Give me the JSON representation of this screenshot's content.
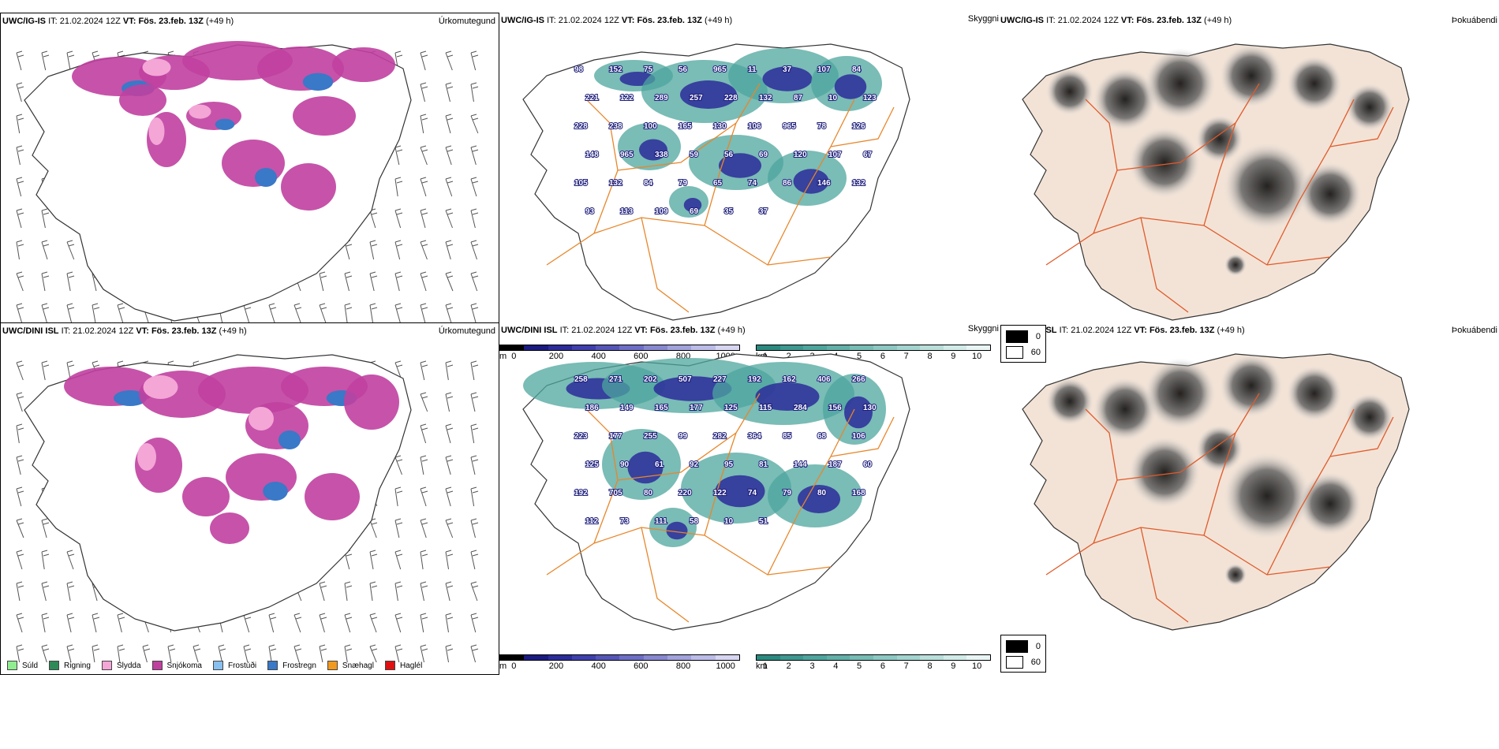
{
  "rows": [
    {
      "model": "UWC/IG-IS",
      "it_label": "IT:",
      "it_value": "21.02.2024 12Z",
      "vt_label": "VT:",
      "vt_value": "Fös. 23.feb. 13Z",
      "lead": "(+49 h)",
      "panel1_title": "Úrkomutegund",
      "panel2_title": "Skyggni",
      "panel3_title": "Þokuábendi",
      "vis_labels": [
        "98",
        "152",
        "75",
        "56",
        "965",
        "11",
        "37",
        "107",
        "84",
        "221",
        "122",
        "289",
        "257",
        "228",
        "132",
        "87",
        "10",
        "123",
        "228",
        "238",
        "100",
        "165",
        "130",
        "106",
        "965",
        "78",
        "126",
        "148",
        "965",
        "338",
        "59",
        "56",
        "69",
        "120",
        "107",
        "67",
        "105",
        "132",
        "84",
        "79",
        "65",
        "74",
        "86",
        "146",
        "132",
        "93",
        "113",
        "109",
        "69",
        "35",
        "37"
      ]
    },
    {
      "model": "UWC/DINI ISL",
      "it_label": "IT:",
      "it_value": "21.02.2024 12Z",
      "vt_label": "VT:",
      "vt_value": "Fös. 23.feb. 13Z",
      "lead": "(+49 h)",
      "panel1_title": "Úrkomutegund",
      "panel2_title": "Skyggni",
      "panel3_title": "Þokuábendi",
      "vis_labels": [
        "258",
        "271",
        "202",
        "507",
        "227",
        "192",
        "162",
        "406",
        "266",
        "186",
        "149",
        "165",
        "177",
        "125",
        "115",
        "284",
        "156",
        "130",
        "223",
        "177",
        "255",
        "99",
        "282",
        "364",
        "85",
        "68",
        "106",
        "125",
        "90",
        "61",
        "92",
        "95",
        "81",
        "144",
        "187",
        "60",
        "192",
        "705",
        "80",
        "220",
        "122",
        "74",
        "79",
        "80",
        "168",
        "112",
        "73",
        "111",
        "58",
        "10",
        "51"
      ]
    }
  ],
  "precip_legend": [
    {
      "label": "Súld",
      "color": "#90ee90"
    },
    {
      "label": "Rigning",
      "color": "#2e8b57"
    },
    {
      "label": "Slydda",
      "color": "#f4a6d7"
    },
    {
      "label": "Snjókoma",
      "color": "#c040a0"
    },
    {
      "label": "Frostúði",
      "color": "#87bff0"
    },
    {
      "label": "Frostregn",
      "color": "#3a78c8"
    },
    {
      "label": "Snæhagl",
      "color": "#f09a20"
    },
    {
      "label": "Haglél",
      "color": "#e01010"
    }
  ],
  "vis_scale_m": {
    "unit": "m",
    "ticks": [
      "0",
      "200",
      "400",
      "600",
      "800",
      "1000"
    ],
    "colors": [
      "#000000",
      "#1a1a80",
      "#2b2b9a",
      "#3f3fae",
      "#5555b8",
      "#6e6ec6",
      "#8888d0",
      "#a2a2dc",
      "#bcbce8",
      "#d6d6f2"
    ]
  },
  "vis_scale_km": {
    "unit": "km",
    "ticks": [
      "1",
      "2",
      "3",
      "4",
      "5",
      "6",
      "7",
      "8",
      "9",
      "10"
    ],
    "colors": [
      "#2a8a80",
      "#3c9890",
      "#4ea59d",
      "#62b0a8",
      "#77bcb5",
      "#8dc8c2",
      "#a3d4cf",
      "#badfdb",
      "#d1ebe8",
      "#e8f5f4"
    ]
  },
  "fog_legend": [
    {
      "label": "0",
      "color": "#000000"
    },
    {
      "label": "60",
      "color": "#ffffff"
    }
  ]
}
